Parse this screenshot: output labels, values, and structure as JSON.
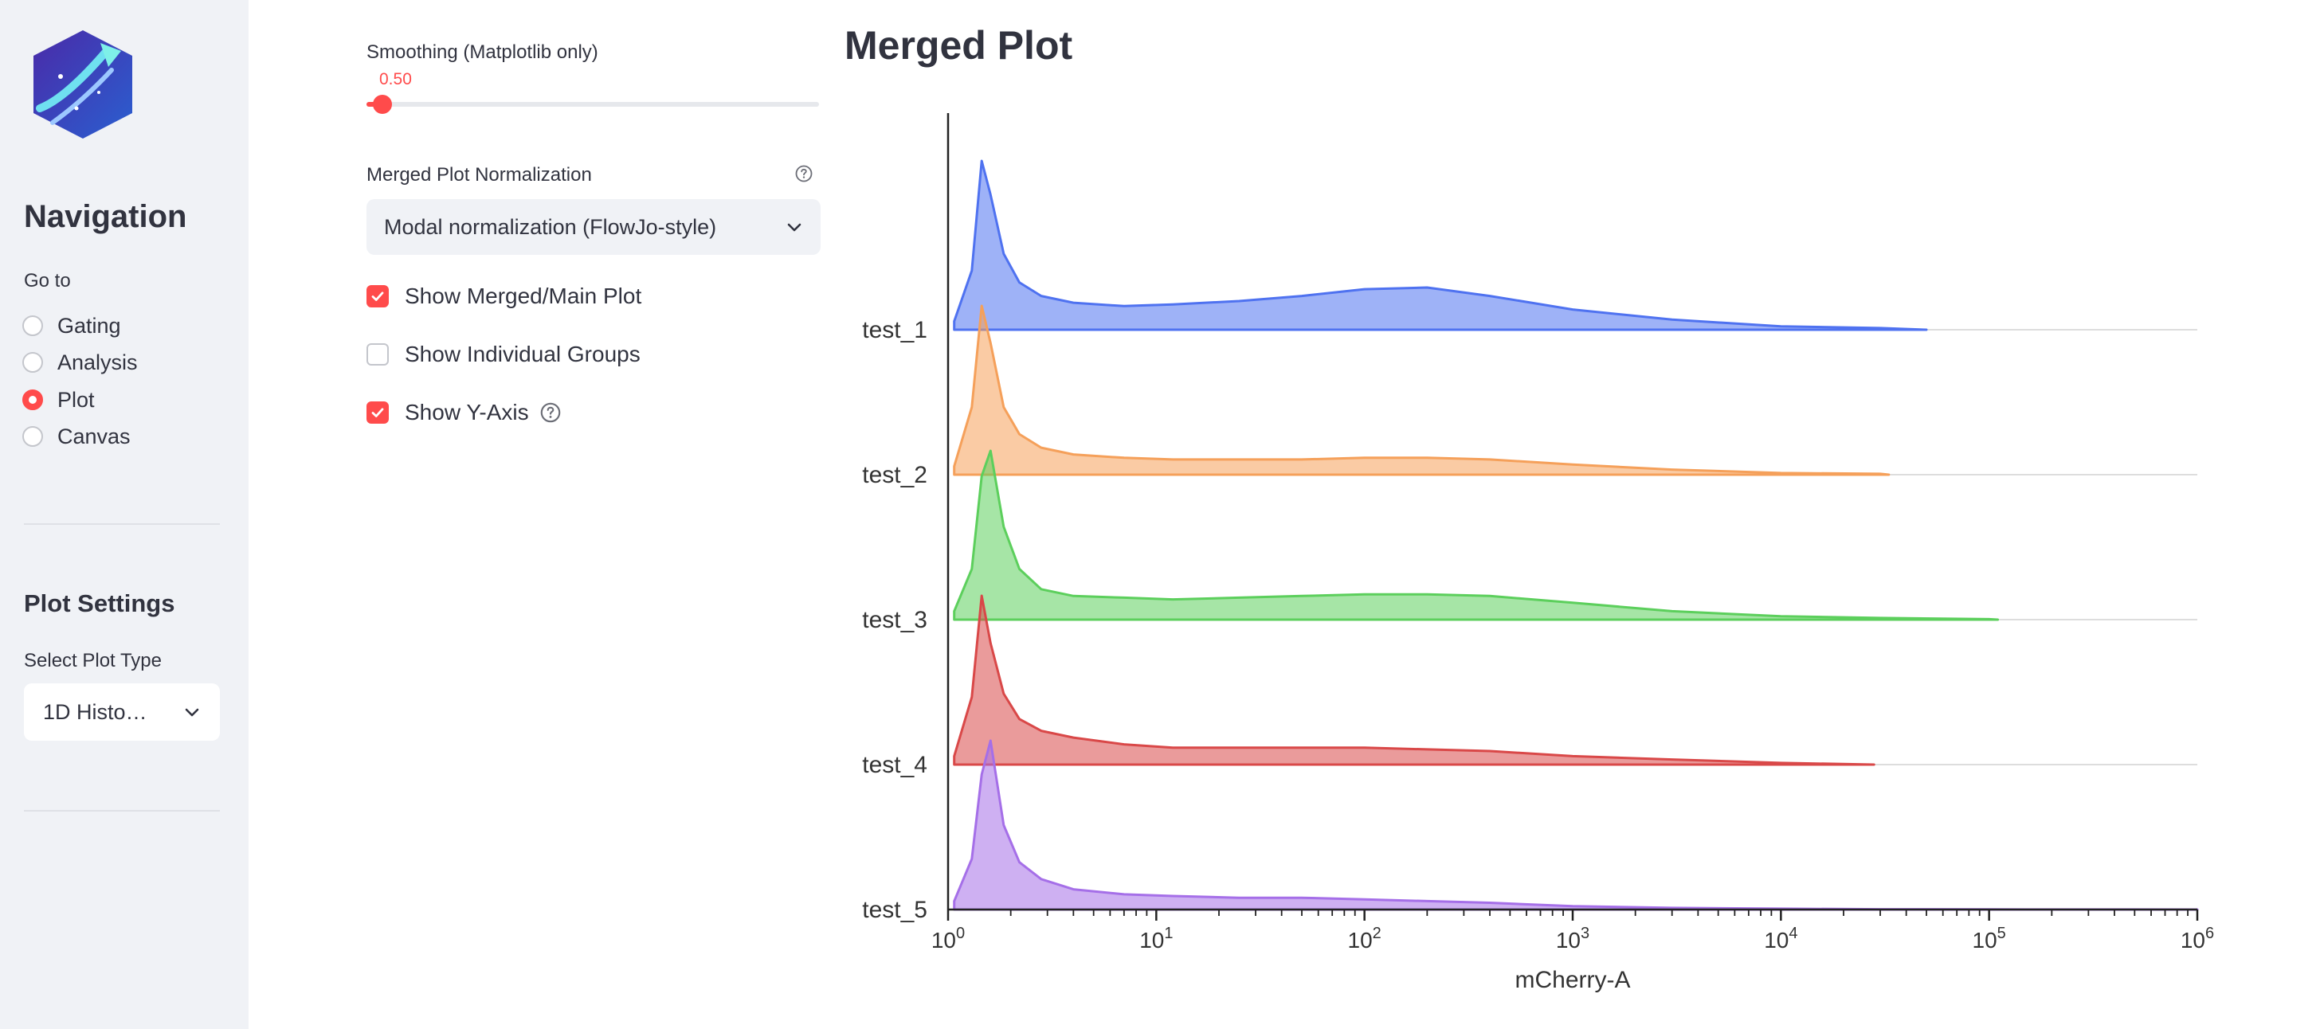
{
  "sidebar": {
    "nav_title": "Navigation",
    "goto_label": "Go to",
    "nav_items": [
      "Gating",
      "Analysis",
      "Plot",
      "Canvas"
    ],
    "selected_nav": "Plot",
    "plot_settings_title": "Plot Settings",
    "select_plot_type_label": "Select Plot Type",
    "plot_type_value": "1D Histo…"
  },
  "controls": {
    "smoothing_label": "Smoothing (Matplotlib only)",
    "smoothing_value": "0.50",
    "smoothing_fraction": 0.035,
    "normalization_label": "Merged Plot Normalization",
    "normalization_value": "Modal normalization (FlowJo-style)",
    "show_merged_label": "Show Merged/Main Plot",
    "show_merged_checked": true,
    "show_individual_label": "Show Individual Groups",
    "show_individual_checked": false,
    "show_yaxis_label": "Show Y-Axis",
    "show_yaxis_checked": true
  },
  "colors": {
    "accent": "#ff4b4b",
    "sidebar_bg": "#f0f2f6",
    "text": "#31333f"
  },
  "icons": {
    "help": "question-circle-icon",
    "dropdown": "chevron-down-icon",
    "check": "check-icon",
    "logo": "app-logo"
  },
  "plot_title": "Merged Plot",
  "chart_data": {
    "type": "area",
    "subtype": "stacked-offset-histogram",
    "xscale": "log",
    "xlim": [
      1,
      1000000
    ],
    "xlabel": "mCherry-A",
    "x_ticks": [
      "10^0",
      "10^1",
      "10^2",
      "10^3",
      "10^4",
      "10^5",
      "10^6"
    ],
    "x_tick_bases": [
      "10",
      "10",
      "10",
      "10",
      "10",
      "10",
      "10"
    ],
    "x_tick_exps": [
      "0",
      "1",
      "2",
      "3",
      "4",
      "5",
      "6"
    ],
    "ylabel": "",
    "series_points_x": [
      1.07,
      1.3,
      1.45,
      1.6,
      1.85,
      2.2,
      2.8,
      4,
      7,
      12,
      25,
      50,
      100,
      200,
      400,
      1000,
      3000,
      10000,
      30000,
      100000,
      1000000
    ],
    "series": [
      {
        "name": "test_1",
        "color": "#4f72f0",
        "end_x": 50000,
        "values": [
          0.05,
          0.35,
          1.0,
          0.8,
          0.45,
          0.28,
          0.2,
          0.16,
          0.14,
          0.15,
          0.17,
          0.2,
          0.24,
          0.25,
          0.2,
          0.12,
          0.06,
          0.02,
          0.01,
          0,
          0
        ]
      },
      {
        "name": "test_2",
        "color": "#f5a05a",
        "end_x": 33000,
        "values": [
          0.05,
          0.4,
          1.0,
          0.78,
          0.4,
          0.24,
          0.16,
          0.12,
          0.1,
          0.09,
          0.09,
          0.09,
          0.1,
          0.1,
          0.09,
          0.06,
          0.03,
          0.01,
          0.005,
          0,
          0
        ]
      },
      {
        "name": "test_3",
        "color": "#5ccf5c",
        "end_x": 110000,
        "values": [
          0.05,
          0.3,
          0.85,
          1.0,
          0.55,
          0.3,
          0.18,
          0.14,
          0.13,
          0.12,
          0.13,
          0.14,
          0.15,
          0.15,
          0.14,
          0.1,
          0.05,
          0.02,
          0.01,
          0.003,
          0
        ]
      },
      {
        "name": "test_4",
        "color": "#d94848",
        "end_x": 28000,
        "values": [
          0.05,
          0.4,
          1.0,
          0.72,
          0.42,
          0.27,
          0.2,
          0.16,
          0.12,
          0.1,
          0.1,
          0.1,
          0.1,
          0.09,
          0.08,
          0.05,
          0.03,
          0.01,
          0.005,
          0,
          0
        ]
      },
      {
        "name": "test_5",
        "color": "#a56fe8",
        "end_x": 1000000,
        "values": [
          0.05,
          0.3,
          0.8,
          1.0,
          0.5,
          0.28,
          0.18,
          0.12,
          0.09,
          0.08,
          0.07,
          0.07,
          0.06,
          0.05,
          0.04,
          0.02,
          0.01,
          0.005,
          0.002,
          0.001,
          0
        ]
      }
    ]
  }
}
